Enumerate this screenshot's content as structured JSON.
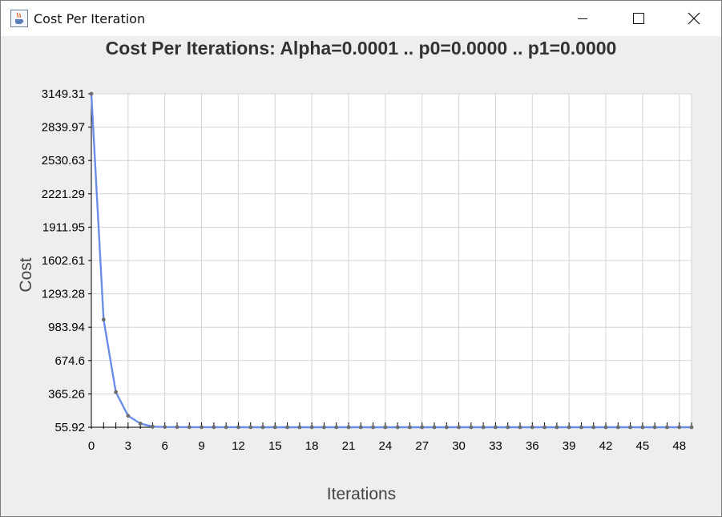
{
  "window": {
    "title": "Cost Per Iteration",
    "app_icon": "java-cup-icon",
    "controls": [
      "minimize-icon",
      "maximize-icon",
      "close-icon"
    ]
  },
  "chart_data": {
    "type": "line",
    "title": "Cost Per Iterations: Alpha=0.0001 .. p0=0.0000 ..  p1=0.0000",
    "xlabel": "Iterations",
    "ylabel": "Cost",
    "xlim": [
      0,
      49
    ],
    "ylim": [
      55.92,
      3149.31
    ],
    "x_ticks": [
      0,
      3,
      6,
      9,
      12,
      15,
      18,
      21,
      24,
      27,
      30,
      33,
      36,
      39,
      42,
      45,
      48
    ],
    "y_tick_labels": [
      "55.92",
      "365.26",
      "674.6",
      "983.94",
      "1293.28",
      "1602.61",
      "1911.95",
      "2221.29",
      "2530.63",
      "2839.97",
      "3149.31"
    ],
    "grid": true,
    "line_color": "#6a8ee6",
    "marker_color": "#6e6e6e",
    "series": [
      {
        "x": [
          0,
          1,
          2,
          3,
          4,
          5,
          6,
          7,
          8,
          9,
          10,
          11,
          12,
          13,
          14,
          15,
          16,
          17,
          18,
          19,
          20,
          21,
          22,
          23,
          24,
          25,
          26,
          27,
          28,
          29,
          30,
          31,
          32,
          33,
          34,
          35,
          36,
          37,
          38,
          39,
          40,
          41,
          42,
          43,
          44,
          45,
          46,
          47,
          48,
          49
        ],
        "values": [
          3149.31,
          1055,
          382,
          162,
          90,
          62,
          58,
          57,
          56.5,
          56.3,
          56.2,
          56.1,
          56.05,
          56,
          56,
          56,
          56,
          55.98,
          55.97,
          55.96,
          55.95,
          55.95,
          55.95,
          55.94,
          55.94,
          55.94,
          55.94,
          55.93,
          55.93,
          55.93,
          55.92,
          55.93,
          55.93,
          55.93,
          55.93,
          55.93,
          55.93,
          55.93,
          55.93,
          55.93,
          55.93,
          55.93,
          55.93,
          55.93,
          55.93,
          55.93,
          55.93,
          55.93,
          55.93,
          55.93
        ]
      }
    ]
  }
}
